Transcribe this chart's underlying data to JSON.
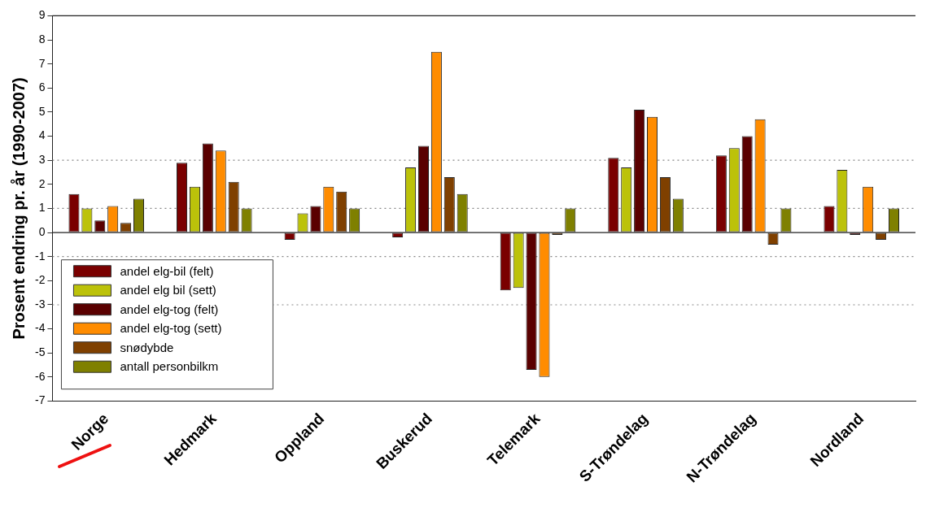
{
  "chart_data": {
    "type": "bar",
    "ylabel": "Prosent endring pr. år (1990-2007)",
    "categories": [
      "Norge",
      "Hedmark",
      "Oppland",
      "Buskerud",
      "Telemark",
      "S-Trøndelag",
      "N-Trøndelag",
      "Nordland"
    ],
    "series": [
      {
        "name": "andel elg-bil (felt)",
        "color": "#7a0000",
        "values": [
          1.6,
          2.9,
          -0.3,
          -0.2,
          -2.4,
          3.1,
          3.2,
          1.1
        ]
      },
      {
        "name": "andel elg bil (sett)",
        "color": "#bcc20a",
        "values": [
          1.0,
          1.9,
          0.8,
          2.7,
          -2.3,
          2.7,
          3.5,
          2.6
        ]
      },
      {
        "name": "andel elg-tog (felt)",
        "color": "#5a0000",
        "values": [
          0.5,
          3.7,
          1.1,
          3.6,
          -5.7,
          5.1,
          4.0,
          -0.1
        ]
      },
      {
        "name": "andel elg-tog (sett)",
        "color": "#ff8c00",
        "values": [
          1.1,
          3.4,
          1.9,
          7.5,
          -6.0,
          4.8,
          4.7,
          1.9
        ]
      },
      {
        "name": "snødybde",
        "color": "#7f4000",
        "values": [
          0.4,
          2.1,
          1.7,
          2.3,
          -0.1,
          2.3,
          -0.5,
          -0.3
        ]
      },
      {
        "name": "antall personbilkm",
        "color": "#7f8000",
        "values": [
          1.4,
          1.0,
          1.0,
          1.6,
          1.0,
          1.4,
          1.0,
          1.0
        ]
      }
    ],
    "ylim": [
      -7,
      9
    ],
    "yticks": [
      -7,
      -6,
      -5,
      -4,
      -3,
      -2,
      -1,
      0,
      1,
      2,
      3,
      4,
      5,
      6,
      7,
      8,
      9
    ],
    "ref_lines": [
      {
        "axis": "y",
        "value": -3,
        "color": "#888888",
        "line_style": "dotted"
      },
      {
        "axis": "y",
        "value": -1,
        "color": "#888888",
        "line_style": "dotted"
      },
      {
        "axis": "y",
        "value": 1,
        "color": "#888888",
        "line_style": "dotted"
      },
      {
        "axis": "y",
        "value": 3,
        "color": "#888888",
        "line_style": "dotted"
      }
    ],
    "legend": "left",
    "grid": false
  }
}
